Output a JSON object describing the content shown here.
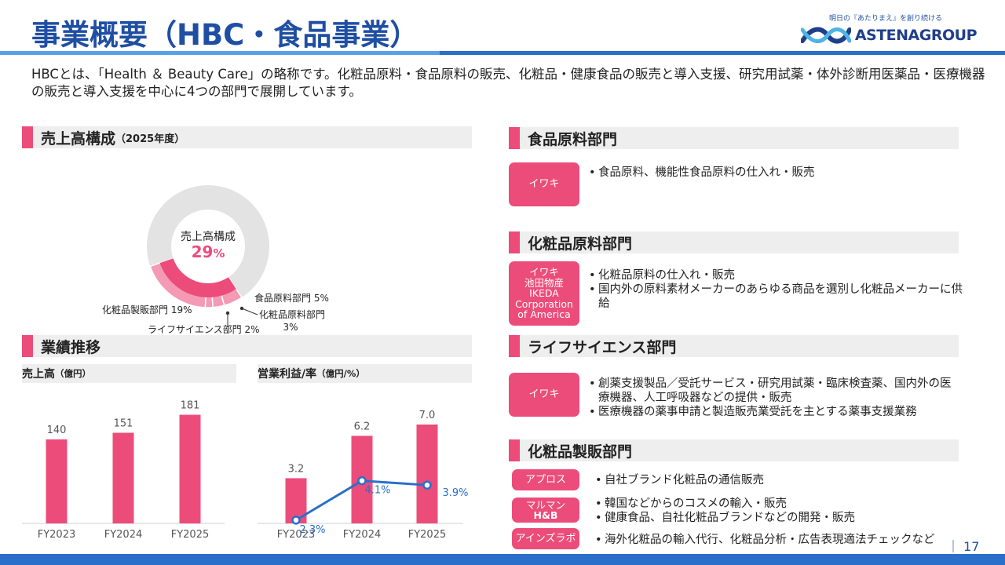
{
  "header": {
    "title": "事業概要（HBC・食品事業）",
    "logo_tagline": "明日の『あたりまえ』を創り続ける",
    "logo_name": "ASTENAGROUP"
  },
  "intro": "HBCとは、「Health ＆ Beauty Care」の略称です。化粧品原料・食品原料の販売、化粧品・健康食品の販売と導入支援、研究用試薬・体外診断用医薬品・医療機器の販売と導入支援を中心に4つの部門で展開しています。",
  "sales_composition": {
    "heading": "売上高構成",
    "heading_sub": "（2025年度）",
    "center_label": "売上高構成",
    "center_value": "29",
    "center_unit": "%"
  },
  "performance": {
    "heading": "業績推移",
    "sales_label": "売上高",
    "sales_unit": "（億円）",
    "profit_label": "営業利益/率",
    "profit_unit": "（億円/%）"
  },
  "colors": {
    "accent_pink": "#ec4c7a",
    "light_pink": "#f49ab5",
    "brand_blue": "#1f4fa3",
    "ring_gray": "#e3e3e3",
    "line_blue": "#2a6fc9"
  },
  "chart_data": [
    {
      "type": "pie",
      "title": "売上高構成",
      "subtitle": "（2025年度）",
      "center_label": "売上高構成",
      "center_value": "29%",
      "slices": [
        {
          "name": "化粧品製販部門",
          "value": 19,
          "label": "化粧品製販部門 19%"
        },
        {
          "name": "ライフサイエンス部門",
          "value": 2,
          "label": "ライフサイエンス部門 2%"
        },
        {
          "name": "化粧品原料部門",
          "value": 3,
          "label": "化粧品原料部門 3%"
        },
        {
          "name": "食品原料部門",
          "value": 5,
          "label": "食品原料部門 5%"
        },
        {
          "name": "",
          "value": 71
        }
      ]
    },
    {
      "type": "bar",
      "title": "売上高",
      "unit": "（億円）",
      "categories": [
        "FY2023",
        "FY2024",
        "FY2025"
      ],
      "values": [
        140,
        151,
        181
      ],
      "ylim": [
        0,
        200
      ],
      "grid": false
    },
    {
      "type": "bar",
      "title": "営業利益/率",
      "unit": "（億円/%）",
      "categories": [
        "FY2023",
        "FY2024",
        "FY2025"
      ],
      "series": [
        {
          "name": "営業利益",
          "type": "bar",
          "values": [
            3.2,
            6.2,
            7.0
          ],
          "labels": [
            "3.2",
            "6.2",
            "7.0"
          ],
          "ylim": [
            0,
            8.5
          ]
        },
        {
          "name": "営業利益率",
          "type": "line",
          "values": [
            2.3,
            4.1,
            3.9
          ],
          "labels": [
            "2.3%",
            "4.1%",
            "3.9%"
          ],
          "ylim": [
            0,
            8.5
          ]
        }
      ],
      "grid": false
    }
  ],
  "divisions": {
    "food": {
      "title": "食品原料部門",
      "companies": [
        "イワキ"
      ],
      "items": [
        "食品原料、機能性食品原料の仕入れ・販売"
      ]
    },
    "cosme_material": {
      "title": "化粧品原料部門",
      "companies": [
        "イワキ",
        "池田物産",
        "IKEDA",
        "Corporation",
        "of America"
      ],
      "items": [
        "化粧品原料の仕入れ・販売",
        "国内外の原料素材メーカーのあらゆる商品を選別し化粧品メーカーに供給"
      ]
    },
    "life_science": {
      "title": "ライフサイエンス部門",
      "companies": [
        "イワキ"
      ],
      "items": [
        "創薬支援製品／受託サービス・研究用試薬・臨床検査薬、国内外の医療機器、人工呼吸器などの提供・販売",
        "医療機器の薬事申請と製造販売業受託を主とする薬事支援業務"
      ]
    },
    "cosme_sales": {
      "title": "化粧品製販部門",
      "rows": [
        {
          "company": "アプロス",
          "items": [
            "自社ブランド化粧品の通信販売"
          ]
        },
        {
          "company": [
            "マルマン",
            "H&B"
          ],
          "items": [
            "韓国などからのコスメの輸入・販売",
            "健康食品、自社化粧品ブランドなどの開発・販売"
          ]
        },
        {
          "company": "アインズラボ",
          "items": [
            "海外化粧品の輸入代行、化粧品分析・広告表現適法チェックなど"
          ]
        }
      ]
    }
  },
  "footer": {
    "page_number": "17"
  }
}
